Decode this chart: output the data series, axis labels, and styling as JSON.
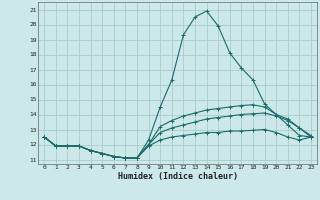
{
  "xlabel": "Humidex (Indice chaleur)",
  "background_color": "#cce8e8",
  "grid_color": "#aacccc",
  "line_color": "#1a6b6b",
  "xlim": [
    -0.5,
    23.5
  ],
  "ylim": [
    10.7,
    21.5
  ],
  "xticks": [
    0,
    1,
    2,
    3,
    4,
    5,
    6,
    7,
    8,
    9,
    10,
    11,
    12,
    13,
    14,
    15,
    16,
    17,
    18,
    19,
    20,
    21,
    22,
    23
  ],
  "yticks": [
    11,
    12,
    13,
    14,
    15,
    16,
    17,
    18,
    19,
    20,
    21
  ],
  "line1_y": [
    12.5,
    11.9,
    11.9,
    11.9,
    11.6,
    11.4,
    11.2,
    11.1,
    11.1,
    12.3,
    14.5,
    16.3,
    19.3,
    20.5,
    20.9,
    19.9,
    18.1,
    17.1,
    16.3,
    14.7,
    14.0,
    13.7,
    13.1,
    12.6
  ],
  "line2_y": [
    12.5,
    11.9,
    11.9,
    11.9,
    11.6,
    11.4,
    11.2,
    11.1,
    11.1,
    12.0,
    13.2,
    13.6,
    13.9,
    14.1,
    14.3,
    14.4,
    14.5,
    14.6,
    14.65,
    14.5,
    14.0,
    13.3,
    12.6,
    12.5
  ],
  "line3_y": [
    12.5,
    11.9,
    11.9,
    11.9,
    11.6,
    11.4,
    11.2,
    11.1,
    11.1,
    12.0,
    12.8,
    13.1,
    13.3,
    13.5,
    13.7,
    13.8,
    13.9,
    14.0,
    14.05,
    14.1,
    13.9,
    13.6,
    13.1,
    12.5
  ],
  "line4_y": [
    12.5,
    11.9,
    11.9,
    11.9,
    11.6,
    11.4,
    11.2,
    11.1,
    11.1,
    11.9,
    12.3,
    12.5,
    12.6,
    12.7,
    12.8,
    12.8,
    12.9,
    12.9,
    12.95,
    13.0,
    12.8,
    12.5,
    12.3,
    12.5
  ]
}
